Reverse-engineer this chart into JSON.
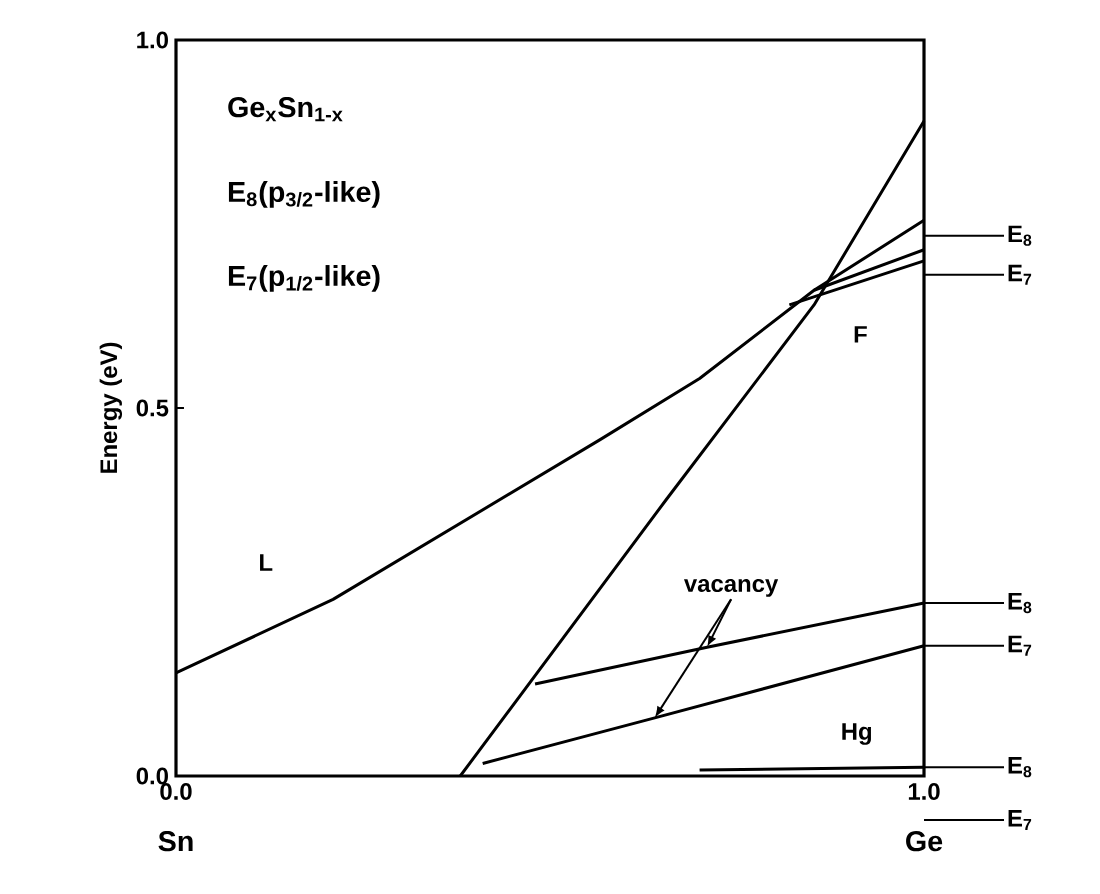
{
  "chart_data": {
    "type": "line",
    "ylabel": "Energy (eV)",
    "xlim": [
      0,
      1
    ],
    "ylim": [
      0,
      1
    ],
    "xticks": [
      {
        "value": 0,
        "label": "0.0"
      },
      {
        "value": 1,
        "label": "1.0"
      }
    ],
    "yticks": [
      {
        "value": 0,
        "label": "0.0"
      },
      {
        "value": 0.5,
        "label": "0.5"
      },
      {
        "value": 1,
        "label": "1.0"
      }
    ],
    "marker": "none",
    "line_style": "solid",
    "grid": false,
    "series": [
      {
        "color": "#000000",
        "x": [
          0,
          0.21,
          0.567,
          0.7,
          0.853,
          1
        ],
        "values": [
          0.14,
          0.24,
          0.457,
          0.54,
          0.66,
          0.755
        ]
      },
      {
        "color": "#000000",
        "x": [
          0.38,
          0.655,
          0.853,
          1
        ],
        "values": [
          0,
          0.375,
          0.64,
          0.89
        ]
      },
      {
        "color": "#000000",
        "x": [
          0.853,
          1
        ],
        "values": [
          0.66,
          0.715
        ]
      },
      {
        "color": "#000000",
        "x": [
          0.82,
          1
        ],
        "values": [
          0.64,
          0.7
        ]
      },
      {
        "color": "#000000",
        "x": [
          0.48,
          0.71,
          1
        ],
        "values": [
          0.125,
          0.175,
          0.235
        ]
      },
      {
        "color": "#000000",
        "x": [
          0.41,
          0.64,
          1
        ],
        "values": [
          0.017,
          0.079,
          0.177
        ]
      },
      {
        "color": "#000000",
        "x": [
          0.7,
          1
        ],
        "values": [
          0.008,
          0.012
        ]
      }
    ],
    "annotations": [
      "Ge$_{x}$Sn$_{1-x}$",
      "E$_{8}$(p$_{3/2}$-like)",
      "E$_{7}$(p$_{1/2}$-like)",
      "L",
      "F",
      {
        "text": "vacancy",
        "x": 0.71,
        "y": 0.175
      },
      "Hg",
      "E$_{8}$",
      "E$_{7}$",
      "E$_{8}$",
      "E$_{7}$",
      "E$_{8}$",
      "E$_{7}$",
      "Sn",
      "Ge"
    ]
  }
}
